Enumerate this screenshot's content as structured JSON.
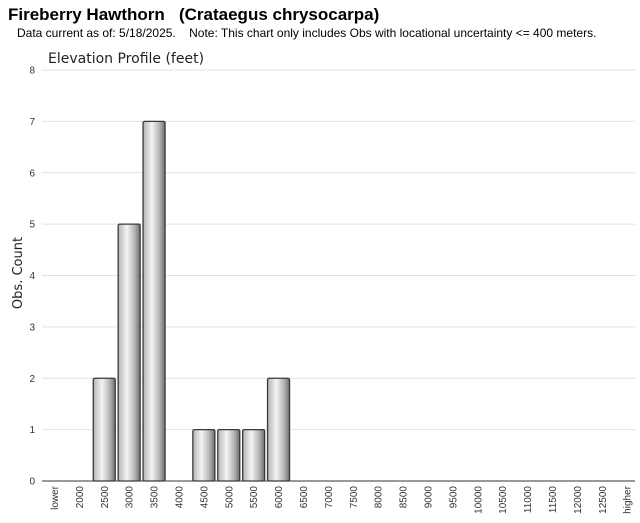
{
  "header": {
    "title": "Fireberry Hawthorn   (Crataegus chrysocarpa)",
    "subtitle": "Data current as of: 5/18/2025.    Note: This chart only includes Obs with locational uncertainty <= 400 meters."
  },
  "colors": {
    "bar_edge": "#3a3a3a",
    "bar_light": "#f4f4f4",
    "bar_mid": "#b4b4b4",
    "bar_dark": "#6e6e6e",
    "grid": "#e2e2e2"
  },
  "chart_data": {
    "type": "bar",
    "title": "Elevation Profile (feet)",
    "xlabel": "",
    "ylabel": "Obs. Count",
    "categories": [
      "lower",
      "2000",
      "2500",
      "3000",
      "3500",
      "4000",
      "4500",
      "5000",
      "5500",
      "6000",
      "6500",
      "7000",
      "7500",
      "8000",
      "8500",
      "9000",
      "9500",
      "10000",
      "10500",
      "11000",
      "11500",
      "12000",
      "12500",
      "higher"
    ],
    "values": [
      0,
      0,
      2,
      5,
      7,
      0,
      1,
      1,
      1,
      2,
      0,
      0,
      0,
      0,
      0,
      0,
      0,
      0,
      0,
      0,
      0,
      0,
      0,
      0
    ],
    "ylim": [
      0,
      8
    ],
    "yticks": [
      0,
      1,
      2,
      3,
      4,
      5,
      6,
      7,
      8
    ],
    "grid": true,
    "legend": "none"
  }
}
